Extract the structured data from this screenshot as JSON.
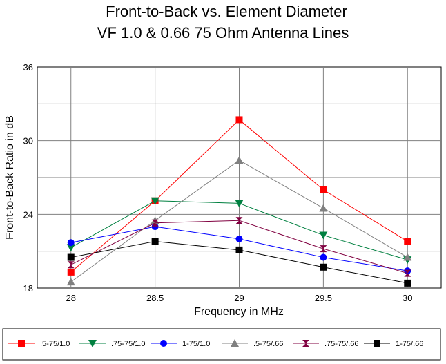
{
  "chart_data": {
    "type": "line",
    "title": [
      "Front-to-Back vs. Element Diameter",
      "VF 1.0 & 0.66 75 Ohm Antenna Lines"
    ],
    "xlabel": "Frequency in MHz",
    "ylabel": "Front-to-Back Ratio in dB",
    "x": [
      28,
      28.5,
      29,
      29.5,
      30
    ],
    "x_tick_labels": [
      "28",
      "28.5",
      "29",
      "29.5",
      "30"
    ],
    "y_ticks": [
      18,
      24,
      30,
      36
    ],
    "y_tick_labels": [
      "18",
      "24",
      "30",
      "36"
    ],
    "xlim": [
      27.8,
      30.2
    ],
    "ylim": [
      18,
      36
    ],
    "grid": true,
    "legend_position": "bottom",
    "series": [
      {
        "name": ".5-75/1.0",
        "values": [
          19.3,
          25.1,
          31.7,
          26.0,
          21.8
        ],
        "color": "#ff0000",
        "marker": "square"
      },
      {
        "name": ".75-75/1.0",
        "values": [
          21.3,
          25.1,
          24.9,
          22.3,
          20.3
        ],
        "color": "#008040",
        "marker": "triangle-down"
      },
      {
        "name": "1-75/1.0",
        "values": [
          21.7,
          23.0,
          22.0,
          20.5,
          19.4
        ],
        "color": "#0000ff",
        "marker": "circle"
      },
      {
        "name": ".5-75/.66",
        "values": [
          18.5,
          23.5,
          28.4,
          24.5,
          20.5
        ],
        "color": "#808080",
        "marker": "triangle-up"
      },
      {
        "name": ".75-75/.66",
        "values": [
          19.9,
          23.3,
          23.5,
          21.2,
          19.2
        ],
        "color": "#800040",
        "marker": "hourglass"
      },
      {
        "name": "1-75/.66",
        "values": [
          20.5,
          21.8,
          21.1,
          19.7,
          18.4
        ],
        "color": "#000000",
        "marker": "square"
      }
    ]
  }
}
